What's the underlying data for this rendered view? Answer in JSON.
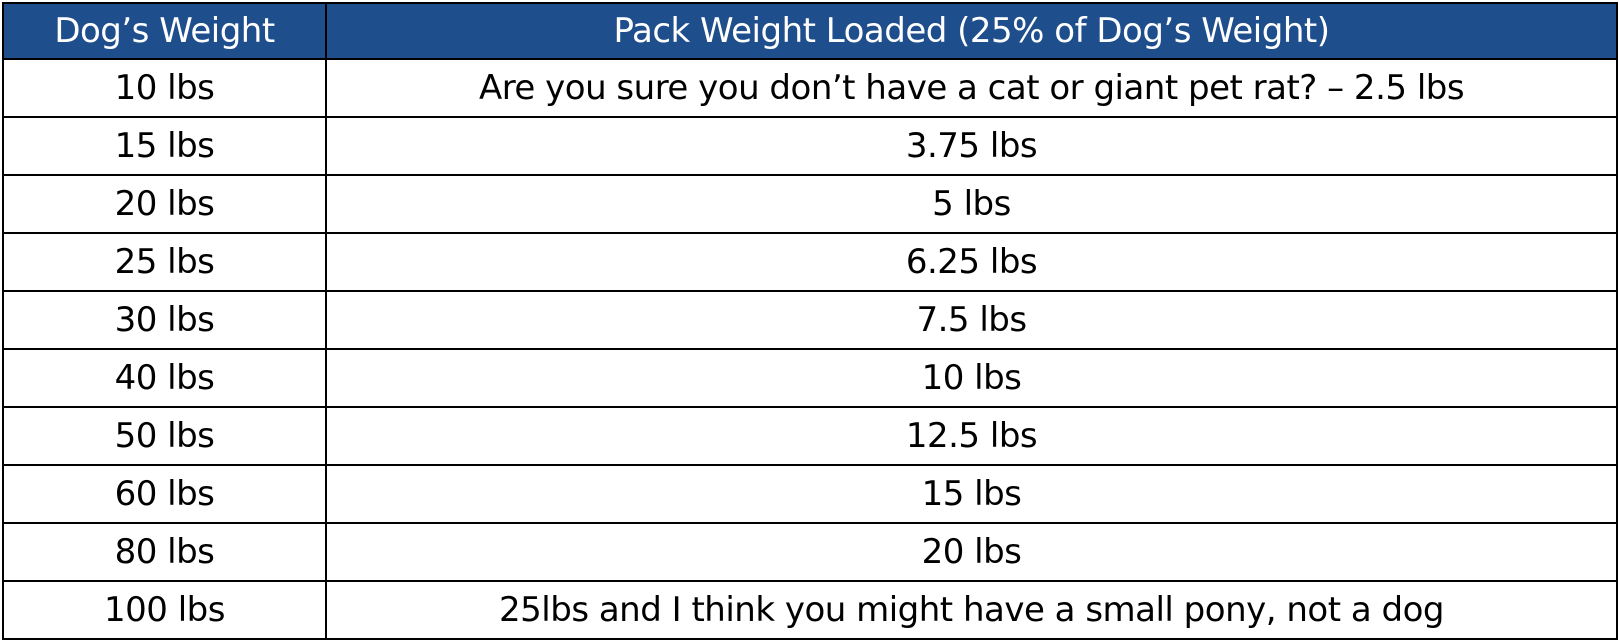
{
  "table": {
    "headers": [
      "Dog’s Weight",
      "Pack Weight Loaded (25% of Dog’s Weight)"
    ],
    "rows": [
      [
        "10 lbs",
        "Are you sure you don’t have a cat or giant pet rat? – 2.5 lbs"
      ],
      [
        "15 lbs",
        "3.75 lbs"
      ],
      [
        "20 lbs",
        "5 lbs"
      ],
      [
        "25 lbs",
        "6.25 lbs"
      ],
      [
        "30 lbs",
        "7.5 lbs"
      ],
      [
        "40 lbs",
        "10 lbs"
      ],
      [
        "50 lbs",
        "12.5 lbs"
      ],
      [
        "60 lbs",
        "15 lbs"
      ],
      [
        "80 lbs",
        "20 lbs"
      ],
      [
        "100 lbs",
        "25lbs and I think you might have a small pony, not a dog"
      ]
    ]
  },
  "colors": {
    "header_background": "#1f4e8c",
    "header_text": "#ffffff",
    "grid_lines": "#000000",
    "cell_text": "#000000"
  }
}
